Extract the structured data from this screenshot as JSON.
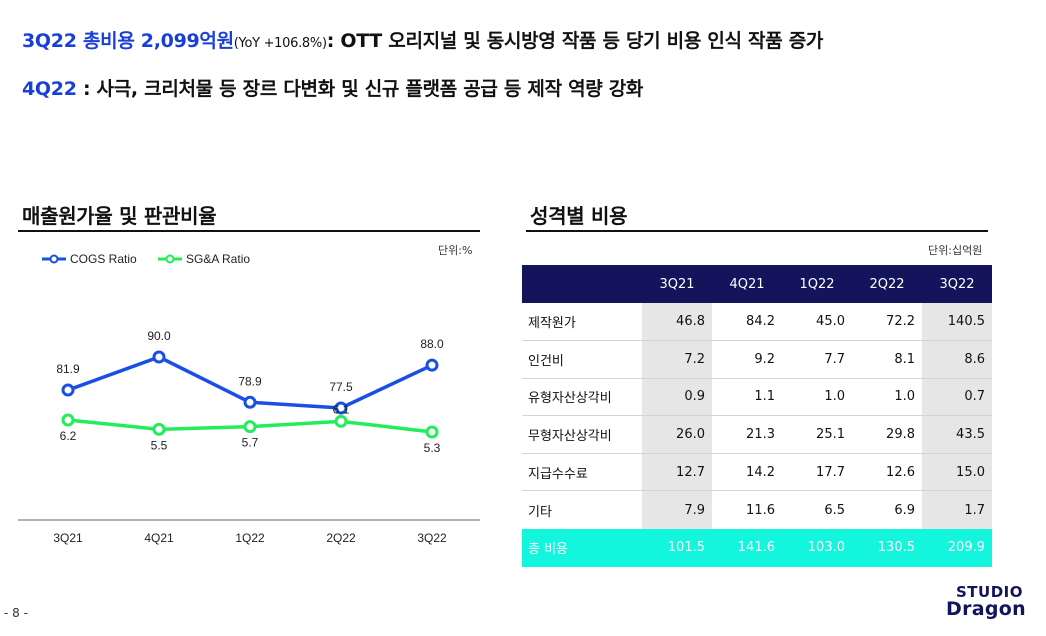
{
  "headline1": {
    "period": "3Q22",
    "title": "총비용 2,099억원",
    "yoy": "(YoY +106.8%)",
    "text": ": OTT 오리지널 및 동시방영 작품 등 당기 비용 인식 작품 증가"
  },
  "headline2": {
    "period": "4Q22",
    "text": " : 사극, 크리처물 등 장르 다변화 및 신규 플랫폼 공급 등 제작 역량 강화"
  },
  "left_panel": {
    "title": "매출원가율 및 판관비율",
    "unit": "단위:%"
  },
  "right_panel": {
    "title": "성격별 비용",
    "unit": "단위:십억원"
  },
  "chart_data": {
    "type": "line",
    "categories": [
      "3Q21",
      "4Q21",
      "1Q22",
      "2Q22",
      "3Q22"
    ],
    "series": [
      {
        "name": "COGS Ratio",
        "values": [
          81.9,
          90.0,
          78.9,
          77.5,
          88.0
        ],
        "color": "#1a4fe6"
      },
      {
        "name": "SG&A Ratio",
        "values": [
          6.2,
          5.5,
          5.7,
          6.1,
          5.3
        ],
        "color": "#22ee5a"
      }
    ],
    "legend_position": "top-left",
    "grid": false
  },
  "table": {
    "columns": [
      "",
      "3Q21",
      "4Q21",
      "1Q22",
      "2Q22",
      "3Q22"
    ],
    "rows": [
      {
        "label": "제작원가",
        "values": [
          "46.8",
          "84.2",
          "45.0",
          "72.2",
          "140.5"
        ]
      },
      {
        "label": "인건비",
        "values": [
          "7.2",
          "9.2",
          "7.7",
          "8.1",
          "8.6"
        ]
      },
      {
        "label": "유형자산상각비",
        "values": [
          "0.9",
          "1.1",
          "1.0",
          "1.0",
          "0.7"
        ]
      },
      {
        "label": "무형자산상각비",
        "values": [
          "26.0",
          "21.3",
          "25.1",
          "29.8",
          "43.5"
        ]
      },
      {
        "label": "지급수수료",
        "values": [
          "12.7",
          "14.2",
          "17.7",
          "12.6",
          "15.0"
        ]
      },
      {
        "label": "기타",
        "values": [
          "7.9",
          "11.6",
          "6.5",
          "6.9",
          "1.7"
        ]
      }
    ],
    "total": {
      "label": "총 비용",
      "values": [
        "101.5",
        "141.6",
        "103.0",
        "130.5",
        "209.9"
      ]
    },
    "header_color": "#14145c",
    "total_color": "#13f5dc"
  },
  "footer": {
    "page": "- 8 -",
    "logo_line1": "STUDIO",
    "logo_line2": "Dragon"
  }
}
